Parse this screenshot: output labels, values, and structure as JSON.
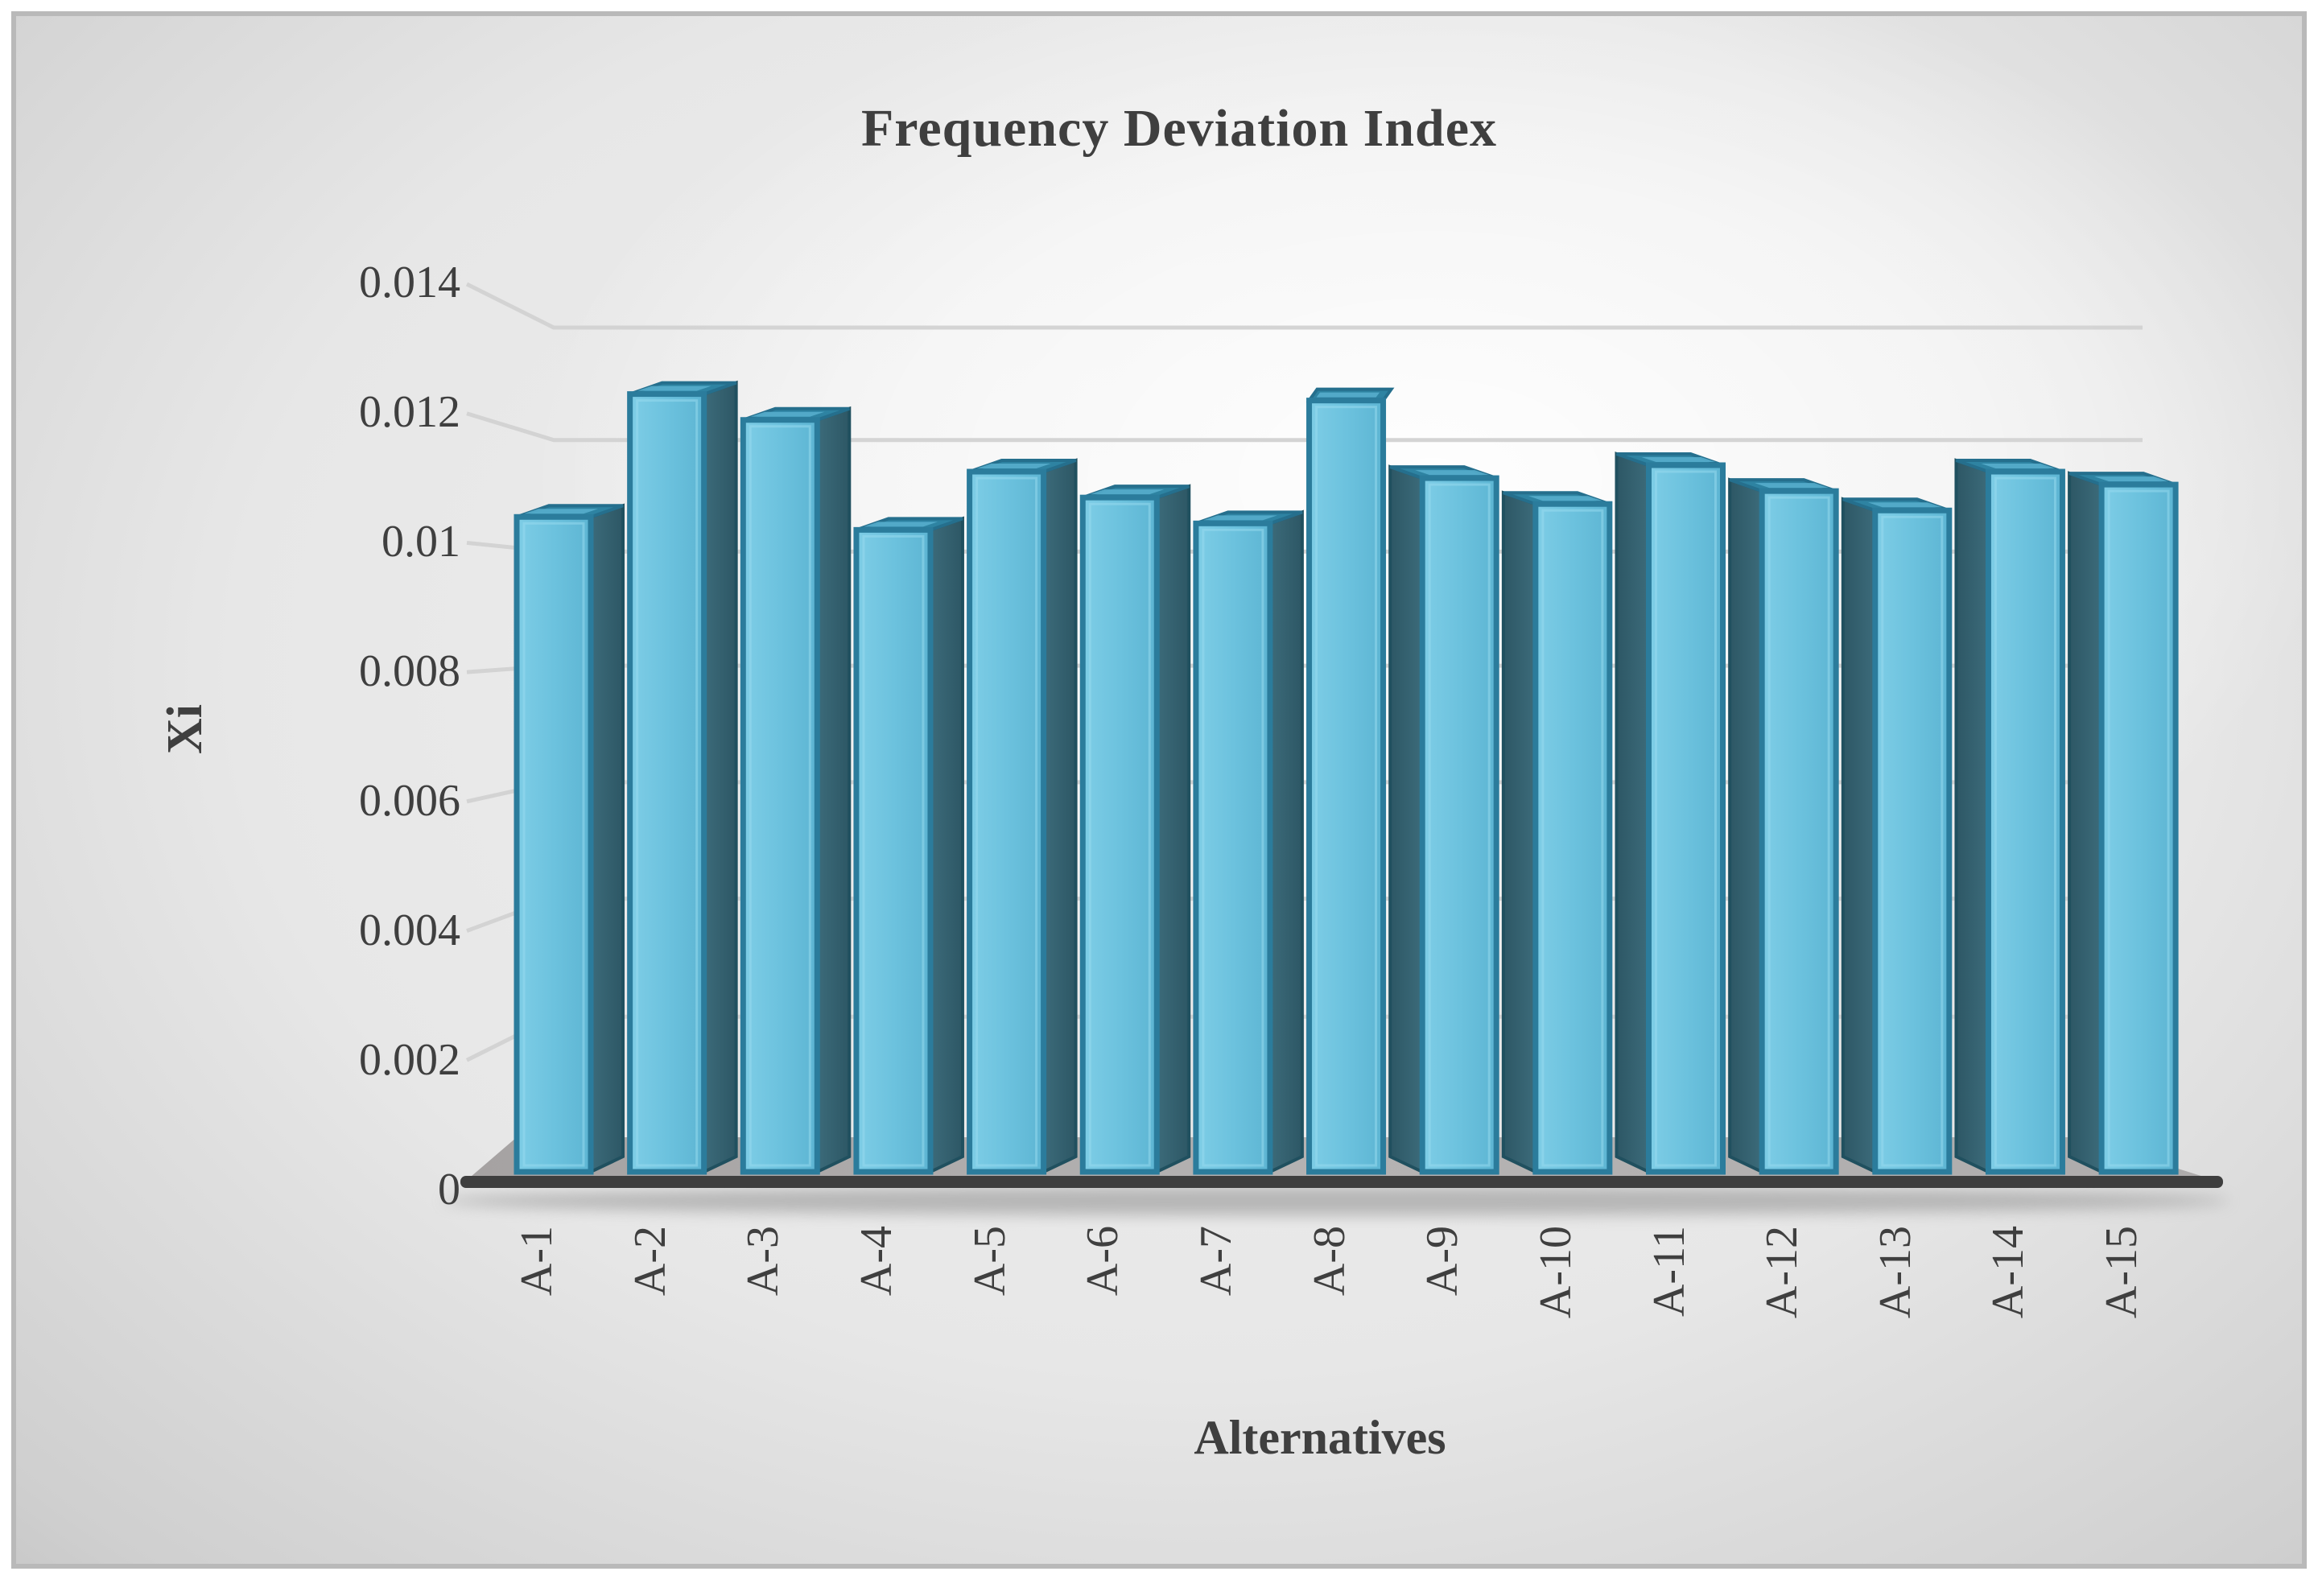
{
  "figure": {
    "title": "Frequency Deviation Index"
  },
  "y_axis": {
    "title": "Xi",
    "ticks": [
      "0.014",
      "0.012",
      "0.01",
      "0.008",
      "0.006",
      "0.004",
      "0.002",
      "0"
    ]
  },
  "x_axis": {
    "title": "Alternatives",
    "categories": [
      "A-1",
      "A-2",
      "A-3",
      "A-4",
      "A-5",
      "A-6",
      "A-7",
      "A-8",
      "A-9",
      "A-10",
      "A-11",
      "A-12",
      "A-13",
      "A-14",
      "A-15"
    ]
  },
  "chart_data": {
    "type": "bar",
    "title": "Frequency Deviation Index",
    "xlabel": "Alternatives",
    "ylabel": "Xi",
    "categories": [
      "A-1",
      "A-2",
      "A-3",
      "A-4",
      "A-5",
      "A-6",
      "A-7",
      "A-8",
      "A-9",
      "A-10",
      "A-11",
      "A-12",
      "A-13",
      "A-14",
      "A-15"
    ],
    "values": [
      0.0104,
      0.0123,
      0.0119,
      0.0102,
      0.0111,
      0.0107,
      0.0103,
      0.0122,
      0.011,
      0.0106,
      0.0112,
      0.0108,
      0.0105,
      0.0111,
      0.0109
    ],
    "ylim": [
      0,
      0.014
    ],
    "ytick_step": 0.002,
    "grid": true,
    "legend": false,
    "style": "3d-cylinder-excel"
  },
  "colors": {
    "bar_front": "#6fc4df",
    "bar_front_light": "#85d2ea",
    "bar_front_dark": "#5cb3d1",
    "bar_edge": "#2b7c9c",
    "bar_cap": "#2e83a2",
    "bar_cap_inner": "#58b0cf",
    "bar_side": "#38677680",
    "bar_side_dark": "#2e5a68",
    "gridline": "#d2d2d2",
    "axis_line": "#3e3e3e",
    "floor": "#b0aeae",
    "text": "#3f3f3f",
    "background_edge": "#c6c6c6"
  }
}
